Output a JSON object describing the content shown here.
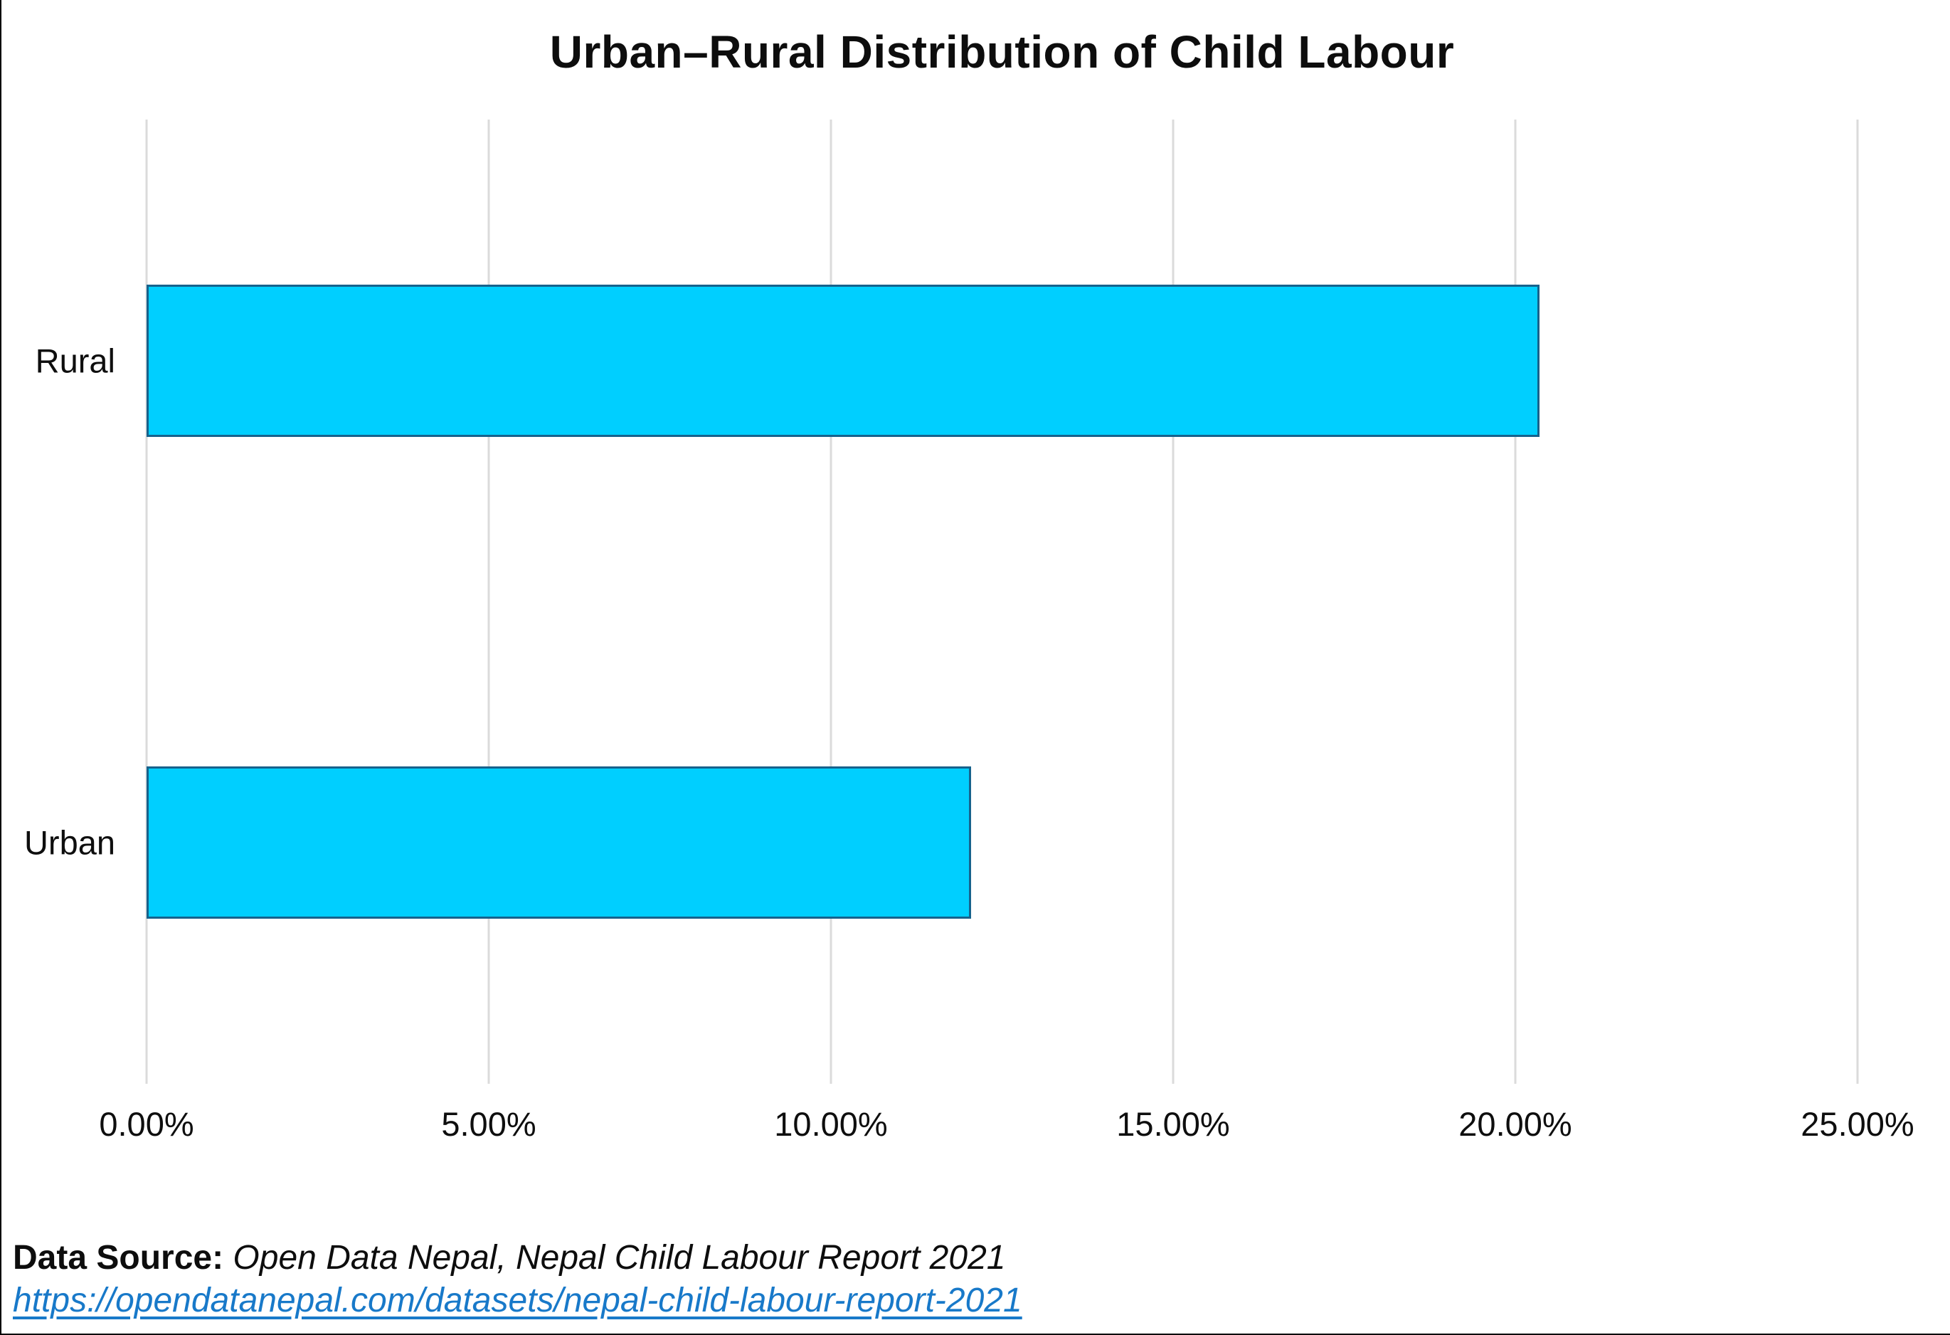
{
  "title": "Urban–Rural Distribution of Child Labour",
  "chart_data": {
    "type": "bar",
    "orientation": "horizontal",
    "title": "Urban–Rural Distribution of Child Labour",
    "categories": [
      "Rural",
      "Urban"
    ],
    "values": [
      20.35,
      12.05
    ],
    "value_format": "percent",
    "xlabel": "",
    "ylabel": "",
    "xlim": [
      0,
      25
    ],
    "x_ticks": [
      0,
      5,
      10,
      15,
      20,
      25
    ],
    "x_tick_labels": [
      "0.00%",
      "5.00%",
      "10.00%",
      "15.00%",
      "20.00%",
      "25.00%"
    ],
    "grid": "vertical-on",
    "legend": "none",
    "bar_fill_color": "#00CFFF",
    "bar_border_color": "#17628C",
    "gridline_color": "#DBDBDB"
  },
  "source": {
    "label": "Data Source:",
    "text": " Open Data Nepal, Nepal Child Labour Report 2021",
    "link": "https://opendatanepal.com/datasets/nepal-child-labour-report-2021",
    "link_color": "#1879C9"
  }
}
